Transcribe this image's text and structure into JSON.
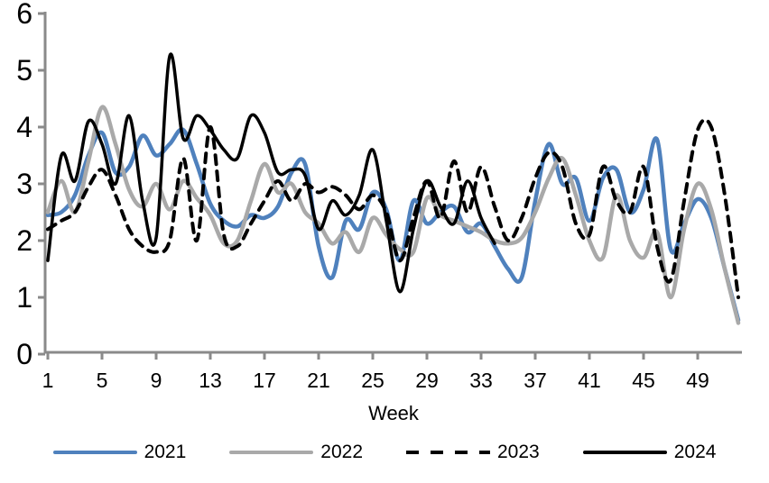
{
  "chart_data": {
    "type": "line",
    "title": "",
    "xlabel": "Week",
    "ylabel": "",
    "xlim": [
      1,
      52
    ],
    "ylim": [
      0,
      6
    ],
    "x_ticks": [
      1,
      5,
      9,
      13,
      17,
      21,
      25,
      29,
      33,
      37,
      41,
      45,
      49
    ],
    "y_ticks": [
      0,
      1,
      2,
      3,
      4,
      5,
      6
    ],
    "grid": false,
    "legend_position": "bottom",
    "axis_color": "#8a8a8a",
    "text_color": "#000000",
    "x_unit": "week_of_year",
    "series": [
      {
        "name": "2021",
        "color": "#4f81bd",
        "style": "solid",
        "values": [
          2.45,
          2.5,
          2.8,
          3.5,
          3.9,
          3.2,
          3.3,
          3.85,
          3.5,
          3.7,
          3.95,
          3.35,
          2.65,
          2.35,
          2.25,
          2.45,
          2.4,
          2.6,
          3.2,
          3.35,
          1.9,
          1.35,
          2.35,
          2.2,
          2.85,
          2.55,
          1.65,
          2.7,
          2.3,
          2.5,
          2.6,
          2.15,
          2.3,
          1.9,
          1.5,
          1.35,
          2.7,
          3.7,
          3.0,
          3.1,
          2.35,
          3.1,
          3.25,
          2.5,
          2.9,
          3.78,
          1.85,
          2.3,
          2.73,
          2.4,
          1.5,
          0.6
        ]
      },
      {
        "name": "2022",
        "color": "#a9a9a9",
        "style": "solid",
        "values": [
          2.5,
          3.05,
          2.5,
          3.4,
          4.35,
          3.7,
          2.9,
          2.6,
          3.0,
          2.55,
          3.05,
          2.75,
          2.45,
          1.95,
          2.0,
          2.7,
          3.35,
          2.85,
          3.0,
          2.5,
          2.3,
          1.95,
          2.15,
          1.8,
          2.4,
          2.1,
          1.85,
          1.8,
          2.75,
          2.45,
          2.35,
          2.25,
          2.15,
          2.0,
          1.95,
          2.05,
          2.5,
          3.1,
          3.45,
          2.8,
          2.0,
          1.7,
          2.8,
          2.0,
          1.7,
          2.15,
          1.0,
          2.2,
          3.0,
          2.55,
          1.5,
          0.55
        ]
      },
      {
        "name": "2023",
        "color": "#000000",
        "style": "dashed",
        "values": [
          2.2,
          2.35,
          2.5,
          2.95,
          3.25,
          2.8,
          2.2,
          1.9,
          1.8,
          2.0,
          3.45,
          2.0,
          4.0,
          2.1,
          1.9,
          2.3,
          2.7,
          3.05,
          2.7,
          3.0,
          2.85,
          2.95,
          2.8,
          2.55,
          2.8,
          2.5,
          1.65,
          2.4,
          3.05,
          2.4,
          3.4,
          2.5,
          3.3,
          2.6,
          2.0,
          2.4,
          3.1,
          3.55,
          3.3,
          2.3,
          2.1,
          3.3,
          2.7,
          2.5,
          3.3,
          1.9,
          1.3,
          2.7,
          3.95,
          4.0,
          2.8,
          1.0
        ]
      },
      {
        "name": "2024",
        "color": "#000000",
        "style": "solid",
        "values": [
          1.65,
          3.5,
          3.05,
          4.1,
          3.7,
          3.0,
          4.2,
          2.7,
          2.05,
          5.25,
          3.8,
          4.2,
          3.95,
          3.6,
          3.45,
          4.2,
          3.9,
          3.2,
          3.25,
          3.15,
          2.2,
          2.7,
          2.45,
          2.8,
          3.6,
          2.35,
          1.1,
          2.2,
          3.05,
          2.6,
          2.3,
          3.05,
          2.4,
          1.95,
          null,
          null,
          null,
          null,
          null,
          null,
          null,
          null,
          null,
          null,
          null,
          null,
          null,
          null,
          null,
          null,
          null,
          null
        ]
      }
    ]
  },
  "legend": {
    "items": [
      "2021",
      "2022",
      "2023",
      "2024"
    ]
  }
}
